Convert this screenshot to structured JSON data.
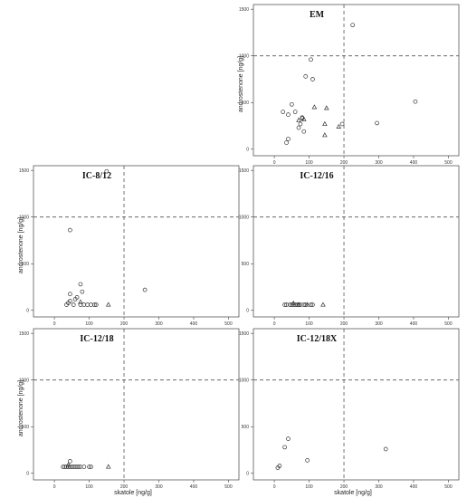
{
  "chart_data": [
    {
      "type": "scatter",
      "title": "EM",
      "xlabel": "",
      "ylabel": "androstenone [ng/g]",
      "xlim": [
        -60,
        530
      ],
      "ylim": [
        -70,
        1550
      ],
      "xticks": [
        0,
        100,
        200,
        300,
        400,
        500
      ],
      "yticks": [
        0,
        500,
        1000,
        1500
      ],
      "thresholds": {
        "x": 200,
        "y": 1000
      },
      "grid": false,
      "series": [
        {
          "marker": "circle",
          "points": [
            [
              25,
              400
            ],
            [
              35,
              70
            ],
            [
              40,
              110
            ],
            [
              40,
              370
            ],
            [
              50,
              480
            ],
            [
              60,
              400
            ],
            [
              70,
              230
            ],
            [
              75,
              270
            ],
            [
              80,
              330
            ],
            [
              80,
              340
            ],
            [
              85,
              190
            ],
            [
              90,
              780
            ],
            [
              105,
              960
            ],
            [
              110,
              750
            ],
            [
              195,
              270
            ],
            [
              225,
              1330
            ],
            [
              295,
              280
            ],
            [
              405,
              510
            ]
          ]
        },
        {
          "marker": "triangle",
          "points": [
            [
              70,
              310
            ],
            [
              85,
              320
            ],
            [
              115,
              450
            ],
            [
              145,
              150
            ],
            [
              145,
              270
            ],
            [
              150,
              440
            ],
            [
              185,
              240
            ]
          ]
        }
      ]
    },
    {
      "type": "scatter",
      "title": "IC-8/12",
      "xlabel": "",
      "ylabel": "androstenone [ng/g]",
      "xlim": [
        -60,
        530
      ],
      "ylim": [
        -70,
        1550
      ],
      "xticks": [
        0,
        100,
        200,
        300,
        400,
        500
      ],
      "yticks": [
        0,
        500,
        1000,
        1500
      ],
      "thresholds": {
        "x": 200,
        "y": 1000
      },
      "grid": false,
      "series": [
        {
          "marker": "circle",
          "points": [
            [
              35,
              60
            ],
            [
              40,
              80
            ],
            [
              45,
              860
            ],
            [
              45,
              100
            ],
            [
              45,
              175
            ],
            [
              55,
              60
            ],
            [
              60,
              120
            ],
            [
              65,
              140
            ],
            [
              75,
              60
            ],
            [
              75,
              280
            ],
            [
              80,
              200
            ],
            [
              85,
              60
            ],
            [
              95,
              60
            ],
            [
              105,
              60
            ],
            [
              115,
              60
            ],
            [
              120,
              60
            ],
            [
              150,
              1490
            ],
            [
              260,
              220
            ]
          ]
        },
        {
          "marker": "triangle",
          "points": [
            [
              75,
              90
            ],
            [
              155,
              60
            ]
          ]
        }
      ]
    },
    {
      "type": "scatter",
      "title": "IC-12/16",
      "xlabel": "",
      "ylabel": "",
      "xlim": [
        -60,
        530
      ],
      "ylim": [
        -70,
        1550
      ],
      "xticks": [
        0,
        100,
        200,
        300,
        400,
        500
      ],
      "yticks": [
        0,
        500,
        1000,
        1500
      ],
      "thresholds": {
        "x": 200,
        "y": 1000
      },
      "grid": false,
      "series": [
        {
          "marker": "circle",
          "points": [
            [
              30,
              60
            ],
            [
              35,
              60
            ],
            [
              45,
              60
            ],
            [
              50,
              60
            ],
            [
              55,
              60
            ],
            [
              60,
              60
            ],
            [
              65,
              60
            ],
            [
              70,
              60
            ],
            [
              75,
              60
            ],
            [
              85,
              60
            ],
            [
              90,
              60
            ],
            [
              105,
              60
            ],
            [
              110,
              60
            ]
          ]
        },
        {
          "marker": "triangle",
          "points": [
            [
              55,
              75
            ],
            [
              70,
              60
            ],
            [
              95,
              60
            ],
            [
              140,
              60
            ]
          ]
        }
      ]
    },
    {
      "type": "scatter",
      "title": "IC-12/18",
      "xlabel": "skatole [ng/g]",
      "ylabel": "androstenone [ng/g]",
      "xlim": [
        -60,
        530
      ],
      "ylim": [
        -70,
        1550
      ],
      "xticks": [
        0,
        100,
        200,
        300,
        400,
        500
      ],
      "yticks": [
        0,
        500,
        1000,
        1500
      ],
      "thresholds": {
        "x": 200,
        "y": 1000
      },
      "grid": false,
      "series": [
        {
          "marker": "circle",
          "points": [
            [
              25,
              70
            ],
            [
              30,
              70
            ],
            [
              35,
              70
            ],
            [
              40,
              70
            ],
            [
              45,
              70
            ],
            [
              45,
              130
            ],
            [
              50,
              70
            ],
            [
              55,
              70
            ],
            [
              60,
              70
            ],
            [
              65,
              70
            ],
            [
              70,
              70
            ],
            [
              75,
              70
            ],
            [
              85,
              70
            ],
            [
              100,
              70
            ],
            [
              105,
              70
            ]
          ]
        },
        {
          "marker": "triangle",
          "points": [
            [
              40,
              90
            ],
            [
              155,
              70
            ]
          ]
        }
      ]
    },
    {
      "type": "scatter",
      "title": "IC-12/18X",
      "xlabel": "skatole [ng/g]",
      "ylabel": "",
      "xlim": [
        -60,
        530
      ],
      "ylim": [
        -70,
        1550
      ],
      "xticks": [
        0,
        100,
        200,
        300,
        400,
        500
      ],
      "yticks": [
        0,
        500,
        1000,
        1500
      ],
      "thresholds": {
        "x": 200,
        "y": 1000
      },
      "grid": false,
      "series": [
        {
          "marker": "circle",
          "points": [
            [
              10,
              60
            ],
            [
              15,
              80
            ],
            [
              30,
              280
            ],
            [
              40,
              370
            ],
            [
              95,
              140
            ],
            [
              320,
              260
            ]
          ]
        },
        {
          "marker": "triangle",
          "points": []
        }
      ]
    }
  ]
}
